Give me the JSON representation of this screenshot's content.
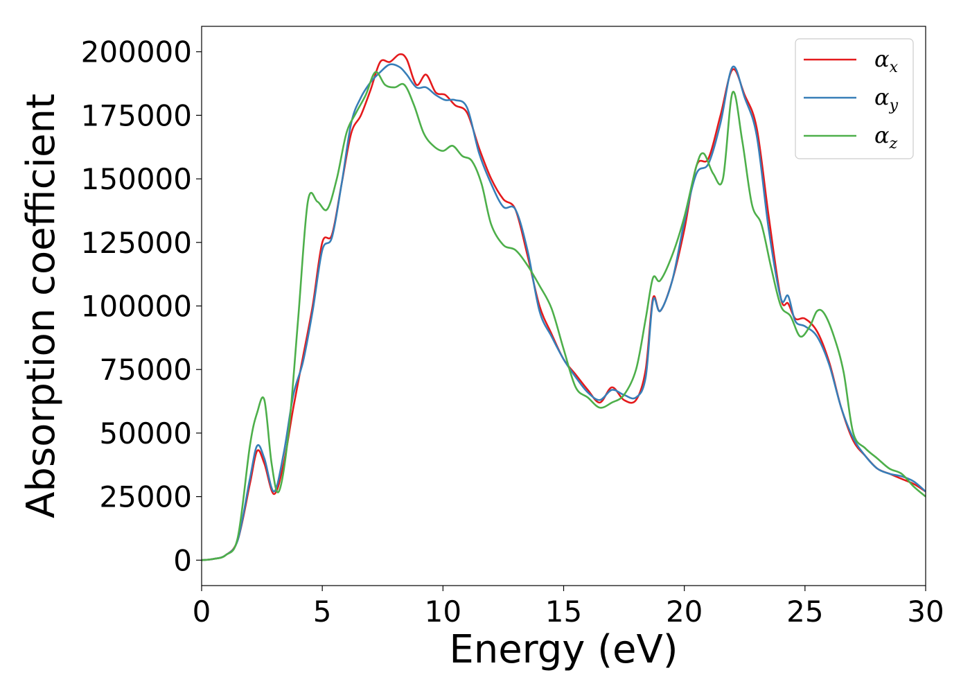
{
  "chart_data": {
    "type": "line",
    "xlabel": "Energy (eV)",
    "ylabel": "Absorption coefficient",
    "xlim": [
      0,
      30
    ],
    "ylim": [
      -10000,
      210000
    ],
    "xticks": [
      0,
      5,
      10,
      15,
      20,
      25,
      30
    ],
    "xtick_labels": [
      "0",
      "5",
      "10",
      "15",
      "20",
      "25",
      "30"
    ],
    "yticks": [
      0,
      25000,
      50000,
      75000,
      100000,
      125000,
      150000,
      175000,
      200000
    ],
    "ytick_labels": [
      "0",
      "25000",
      "50000",
      "75000",
      "100000",
      "125000",
      "150000",
      "175000",
      "200000"
    ],
    "grid": false,
    "legend_position": "top-right",
    "series": [
      {
        "name": "αx",
        "legend_symbol": "α",
        "legend_sub": "x",
        "color": "#e41a1c",
        "x": [
          0,
          0.5,
          1.0,
          1.5,
          2.0,
          2.3,
          2.6,
          3.0,
          3.4,
          3.8,
          4.2,
          4.6,
          5.0,
          5.4,
          5.8,
          6.2,
          6.6,
          7.0,
          7.4,
          7.8,
          8.2,
          8.5,
          8.9,
          9.3,
          9.7,
          10.1,
          10.5,
          11.0,
          11.5,
          12.0,
          12.5,
          13.0,
          13.5,
          14.0,
          14.5,
          15.0,
          15.5,
          16.0,
          16.5,
          17.0,
          17.5,
          18.0,
          18.4,
          18.7,
          19.0,
          19.5,
          20.0,
          20.5,
          21.0,
          21.5,
          22.0,
          22.5,
          23.0,
          23.5,
          24.0,
          24.3,
          24.6,
          25.0,
          25.5,
          26.0,
          26.5,
          27.0,
          27.5,
          28.0,
          28.5,
          29.0,
          29.5,
          30.0
        ],
        "y": [
          0,
          500,
          2000,
          8000,
          30000,
          43000,
          38000,
          26000,
          38000,
          60000,
          80000,
          100000,
          125000,
          128000,
          148000,
          168000,
          175000,
          185000,
          196000,
          196000,
          199000,
          197000,
          187000,
          191000,
          184000,
          183000,
          179000,
          176000,
          162000,
          150000,
          142000,
          138000,
          120000,
          100000,
          89000,
          79000,
          73000,
          67000,
          62000,
          68000,
          63000,
          63000,
          75000,
          103000,
          98000,
          110000,
          130000,
          155000,
          158000,
          175000,
          193000,
          183000,
          170000,
          135000,
          103000,
          101000,
          95000,
          95000,
          90000,
          78000,
          60000,
          47000,
          41000,
          36000,
          34000,
          32000,
          30000,
          27000
        ]
      },
      {
        "name": "αy",
        "legend_symbol": "α",
        "legend_sub": "y",
        "color": "#377eb8",
        "x": [
          0,
          0.5,
          1.0,
          1.5,
          2.0,
          2.3,
          2.6,
          3.0,
          3.4,
          3.8,
          4.2,
          4.6,
          5.0,
          5.4,
          5.8,
          6.2,
          6.6,
          7.0,
          7.4,
          7.8,
          8.2,
          8.5,
          8.9,
          9.3,
          9.7,
          10.1,
          10.5,
          11.0,
          11.5,
          12.0,
          12.5,
          13.0,
          13.5,
          14.0,
          14.5,
          15.0,
          15.5,
          16.0,
          16.5,
          17.0,
          17.5,
          18.0,
          18.4,
          18.7,
          19.0,
          19.5,
          20.0,
          20.5,
          21.0,
          21.5,
          22.0,
          22.5,
          23.0,
          23.5,
          24.0,
          24.3,
          24.6,
          25.0,
          25.5,
          26.0,
          26.5,
          27.0,
          27.5,
          28.0,
          28.5,
          29.0,
          29.5,
          30.0
        ],
        "y": [
          0,
          500,
          2000,
          8000,
          32000,
          45000,
          40000,
          27000,
          42000,
          65000,
          78000,
          98000,
          122000,
          127000,
          148000,
          172000,
          182000,
          188000,
          192000,
          195000,
          194000,
          191000,
          186000,
          186000,
          183000,
          181000,
          181000,
          178000,
          160000,
          148000,
          139000,
          138000,
          122000,
          98000,
          88000,
          79000,
          72000,
          66000,
          63000,
          67000,
          65000,
          64000,
          72000,
          102000,
          98000,
          110000,
          133000,
          152000,
          156000,
          172000,
          194000,
          182000,
          167000,
          130000,
          103000,
          104000,
          94000,
          92000,
          88000,
          77000,
          60000,
          48000,
          41000,
          36000,
          34000,
          33000,
          31000,
          27000
        ]
      },
      {
        "name": "αz",
        "legend_symbol": "α",
        "legend_sub": "z",
        "color": "#4daf4a",
        "x": [
          0,
          0.5,
          1.0,
          1.5,
          2.0,
          2.3,
          2.6,
          2.9,
          3.2,
          3.6,
          4.0,
          4.4,
          4.8,
          5.2,
          5.6,
          6.0,
          6.4,
          6.8,
          7.2,
          7.6,
          8.0,
          8.4,
          8.8,
          9.2,
          9.6,
          10.0,
          10.4,
          10.8,
          11.2,
          11.6,
          12.0,
          12.5,
          13.0,
          13.5,
          14.0,
          14.5,
          15.0,
          15.5,
          16.0,
          16.5,
          17.0,
          17.5,
          18.0,
          18.4,
          18.7,
          19.0,
          19.5,
          20.0,
          20.5,
          20.8,
          21.2,
          21.6,
          22.0,
          22.4,
          22.8,
          23.2,
          23.6,
          24.0,
          24.4,
          24.8,
          25.2,
          25.5,
          25.8,
          26.2,
          26.6,
          27.0,
          27.5,
          28.0,
          28.5,
          29.0,
          29.5,
          30.0
        ],
        "y": [
          0,
          500,
          2000,
          9000,
          45000,
          58000,
          63000,
          38000,
          27000,
          50000,
          95000,
          141000,
          141000,
          138000,
          150000,
          168000,
          176000,
          183000,
          192000,
          187000,
          186000,
          187000,
          179000,
          168000,
          163000,
          161000,
          163000,
          159000,
          157000,
          148000,
          132000,
          124000,
          122000,
          116000,
          108000,
          99000,
          83000,
          68000,
          64000,
          60000,
          62000,
          65000,
          75000,
          95000,
          111000,
          110000,
          120000,
          135000,
          155000,
          160000,
          152000,
          150000,
          184000,
          165000,
          140000,
          132000,
          115000,
          100000,
          96000,
          88000,
          92000,
          98000,
          97000,
          88000,
          74000,
          50000,
          44000,
          40000,
          36000,
          34000,
          29000,
          25000
        ]
      }
    ]
  }
}
